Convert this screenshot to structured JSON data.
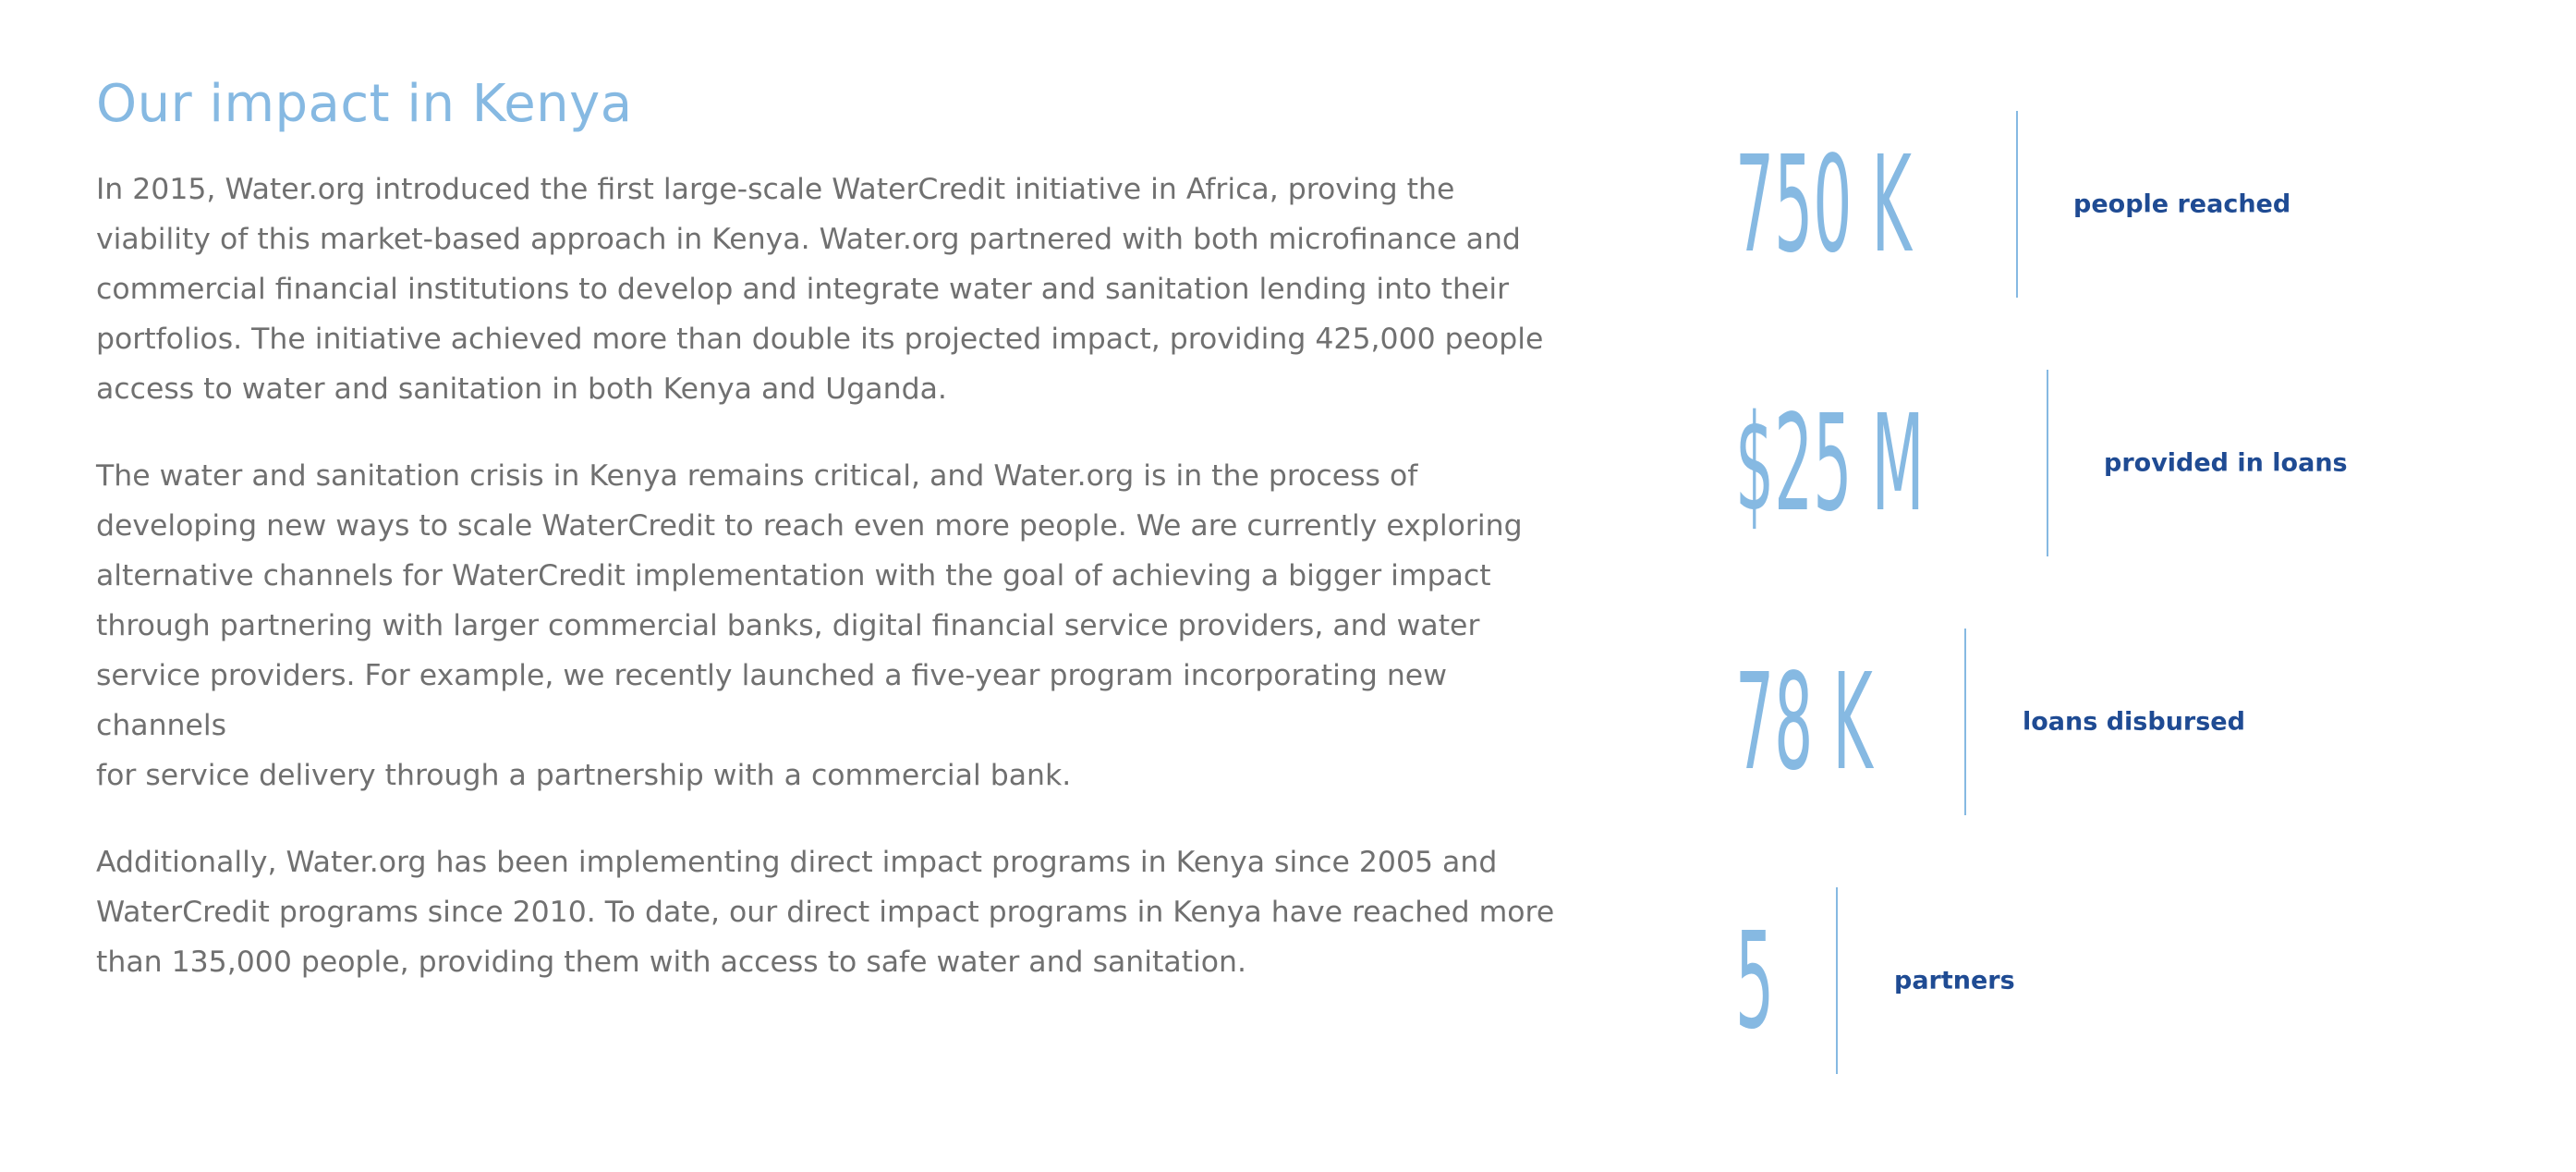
{
  "heading": "Our impact in Kenya",
  "paragraphs": [
    "In 2015, Water.org introduced the first large-scale WaterCredit initiative in Africa, proving the\nviability of this market-based approach in Kenya. Water.org partnered with both microfinance and\ncommercial financial institutions to develop and integrate water and sanitation lending into their\nportfolios. The initiative achieved more than double its projected impact, providing 425,000 people\naccess to water and sanitation in both Kenya and Uganda.",
    "The water and sanitation crisis in Kenya remains critical, and Water.org is in the process of\ndeveloping new ways to scale WaterCredit to reach even more people. We are currently exploring\nalternative channels for WaterCredit implementation with the goal of achieving a bigger impact\nthrough partnering with larger commercial banks, digital financial service providers, and water\nservice providers. For example, we recently launched a five-year program incorporating new channels\nfor service delivery through a partnership with a commercial bank.",
    "Additionally, Water.org has been implementing direct impact programs in Kenya since 2005 and\nWaterCredit programs since 2010. To date, our direct impact programs in Kenya have reached more\nthan 135,000 people, providing them with access to safe water and sanitation."
  ],
  "stats": [
    {
      "value": "750 K",
      "label": "people reached"
    },
    {
      "value": "$25 M",
      "label": "provided in loans"
    },
    {
      "value": "78 K",
      "label": "loans disbursed"
    },
    {
      "value": "5",
      "label": "partners"
    }
  ],
  "colors": {
    "heading": "#86b9e2",
    "body_text": "#707070",
    "stat_number": "#86b9e2",
    "stat_label": "#1f4b93",
    "divider": "#86b9e2"
  }
}
